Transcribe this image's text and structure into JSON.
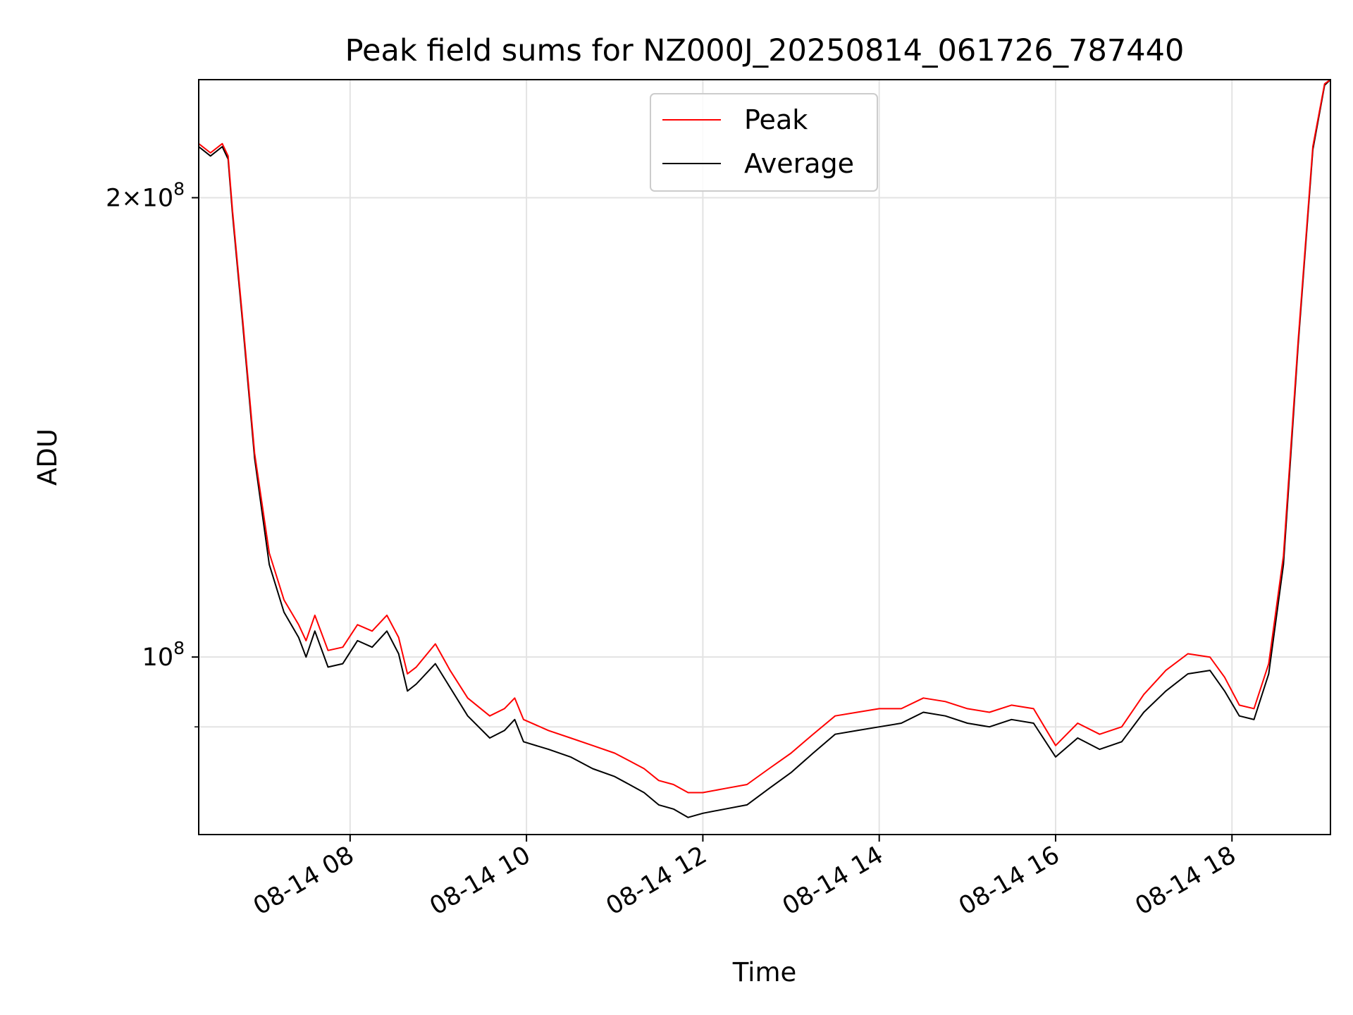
{
  "chart_data": {
    "type": "line",
    "title": "Peak field sums for NZ000J_20250814_061726_787440",
    "xlabel": "Time",
    "ylabel": "ADU",
    "y_scale": "log",
    "xlim": [
      "2025-08-14 06:17",
      "2025-08-14 19:07"
    ],
    "ylim": [
      76500000,
      239000000
    ],
    "x_ticks": [
      {
        "value": "2025-08-14 08:00",
        "label": "08-14 08"
      },
      {
        "value": "2025-08-14 10:00",
        "label": "08-14 10"
      },
      {
        "value": "2025-08-14 12:00",
        "label": "08-14 12"
      },
      {
        "value": "2025-08-14 14:00",
        "label": "08-14 14"
      },
      {
        "value": "2025-08-14 16:00",
        "label": "08-14 16"
      },
      {
        "value": "2025-08-14 18:00",
        "label": "08-14 18"
      }
    ],
    "y_ticks": [
      {
        "value": 200000000,
        "base": "2×10",
        "exp": "8"
      },
      {
        "value": 100000000,
        "base": "10",
        "exp": "8"
      }
    ],
    "y_minor_grid": [
      90000000
    ],
    "grid": true,
    "legend_position": "top-center",
    "series": [
      {
        "name": "Average",
        "color": "#000000",
        "points": [
          [
            "2025-08-14 06:17",
            216000000
          ],
          [
            "2025-08-14 06:25",
            213000000
          ],
          [
            "2025-08-14 06:33",
            216000000
          ],
          [
            "2025-08-14 06:37",
            212000000
          ],
          [
            "2025-08-14 06:40",
            195000000
          ],
          [
            "2025-08-14 06:47",
            165000000
          ],
          [
            "2025-08-14 06:55",
            135000000
          ],
          [
            "2025-08-14 07:05",
            115000000
          ],
          [
            "2025-08-14 07:15",
            107000000
          ],
          [
            "2025-08-14 07:25",
            103000000
          ],
          [
            "2025-08-14 07:30",
            100000000
          ],
          [
            "2025-08-14 07:36",
            104000000
          ],
          [
            "2025-08-14 07:45",
            98500000
          ],
          [
            "2025-08-14 07:55",
            99000000
          ],
          [
            "2025-08-14 08:05",
            102500000
          ],
          [
            "2025-08-14 08:15",
            101500000
          ],
          [
            "2025-08-14 08:25",
            104000000
          ],
          [
            "2025-08-14 08:33",
            100500000
          ],
          [
            "2025-08-14 08:39",
            95000000
          ],
          [
            "2025-08-14 08:45",
            96000000
          ],
          [
            "2025-08-14 08:58",
            99000000
          ],
          [
            "2025-08-14 09:08",
            95500000
          ],
          [
            "2025-08-14 09:20",
            91500000
          ],
          [
            "2025-08-14 09:35",
            88500000
          ],
          [
            "2025-08-14 09:45",
            89500000
          ],
          [
            "2025-08-14 09:52",
            91000000
          ],
          [
            "2025-08-14 09:58",
            88000000
          ],
          [
            "2025-08-14 10:15",
            87000000
          ],
          [
            "2025-08-14 10:30",
            86000000
          ],
          [
            "2025-08-14 10:45",
            84500000
          ],
          [
            "2025-08-14 11:00",
            83500000
          ],
          [
            "2025-08-14 11:10",
            82500000
          ],
          [
            "2025-08-14 11:20",
            81500000
          ],
          [
            "2025-08-14 11:30",
            80000000
          ],
          [
            "2025-08-14 11:40",
            79500000
          ],
          [
            "2025-08-14 11:50",
            78500000
          ],
          [
            "2025-08-14 12:00",
            79000000
          ],
          [
            "2025-08-14 12:15",
            79500000
          ],
          [
            "2025-08-14 12:30",
            80000000
          ],
          [
            "2025-08-14 12:45",
            82000000
          ],
          [
            "2025-08-14 13:00",
            84000000
          ],
          [
            "2025-08-14 13:15",
            86500000
          ],
          [
            "2025-08-14 13:30",
            89000000
          ],
          [
            "2025-08-14 13:45",
            89500000
          ],
          [
            "2025-08-14 14:00",
            90000000
          ],
          [
            "2025-08-14 14:15",
            90500000
          ],
          [
            "2025-08-14 14:30",
            92000000
          ],
          [
            "2025-08-14 14:45",
            91500000
          ],
          [
            "2025-08-14 15:00",
            90500000
          ],
          [
            "2025-08-14 15:15",
            90000000
          ],
          [
            "2025-08-14 15:30",
            91000000
          ],
          [
            "2025-08-14 15:45",
            90500000
          ],
          [
            "2025-08-14 16:00",
            86000000
          ],
          [
            "2025-08-14 16:15",
            88500000
          ],
          [
            "2025-08-14 16:30",
            87000000
          ],
          [
            "2025-08-14 16:45",
            88000000
          ],
          [
            "2025-08-14 17:00",
            92000000
          ],
          [
            "2025-08-14 17:15",
            95000000
          ],
          [
            "2025-08-14 17:30",
            97500000
          ],
          [
            "2025-08-14 17:45",
            98000000
          ],
          [
            "2025-08-14 17:55",
            95000000
          ],
          [
            "2025-08-14 18:05",
            91500000
          ],
          [
            "2025-08-14 18:15",
            91000000
          ],
          [
            "2025-08-14 18:25",
            97500000
          ],
          [
            "2025-08-14 18:35",
            115000000
          ],
          [
            "2025-08-14 18:45",
            160000000
          ],
          [
            "2025-08-14 18:55",
            215000000
          ],
          [
            "2025-08-14 19:03",
            237000000
          ],
          [
            "2025-08-14 19:07",
            239000000
          ]
        ]
      },
      {
        "name": "Peak",
        "color": "#ff0000",
        "points": [
          [
            "2025-08-14 06:17",
            217000000
          ],
          [
            "2025-08-14 06:25",
            214000000
          ],
          [
            "2025-08-14 06:33",
            217000000
          ],
          [
            "2025-08-14 06:37",
            213000000
          ],
          [
            "2025-08-14 06:40",
            196000000
          ],
          [
            "2025-08-14 06:47",
            166000000
          ],
          [
            "2025-08-14 06:55",
            136000000
          ],
          [
            "2025-08-14 07:05",
            117000000
          ],
          [
            "2025-08-14 07:15",
            109000000
          ],
          [
            "2025-08-14 07:25",
            105000000
          ],
          [
            "2025-08-14 07:30",
            102500000
          ],
          [
            "2025-08-14 07:36",
            106500000
          ],
          [
            "2025-08-14 07:45",
            101000000
          ],
          [
            "2025-08-14 07:55",
            101500000
          ],
          [
            "2025-08-14 08:05",
            105000000
          ],
          [
            "2025-08-14 08:15",
            104000000
          ],
          [
            "2025-08-14 08:25",
            106500000
          ],
          [
            "2025-08-14 08:33",
            103000000
          ],
          [
            "2025-08-14 08:39",
            97500000
          ],
          [
            "2025-08-14 08:45",
            98500000
          ],
          [
            "2025-08-14 08:58",
            102000000
          ],
          [
            "2025-08-14 09:08",
            98000000
          ],
          [
            "2025-08-14 09:20",
            94000000
          ],
          [
            "2025-08-14 09:35",
            91500000
          ],
          [
            "2025-08-14 09:45",
            92500000
          ],
          [
            "2025-08-14 09:52",
            94000000
          ],
          [
            "2025-08-14 09:58",
            91000000
          ],
          [
            "2025-08-14 10:15",
            89500000
          ],
          [
            "2025-08-14 10:30",
            88500000
          ],
          [
            "2025-08-14 10:45",
            87500000
          ],
          [
            "2025-08-14 11:00",
            86500000
          ],
          [
            "2025-08-14 11:10",
            85500000
          ],
          [
            "2025-08-14 11:20",
            84500000
          ],
          [
            "2025-08-14 11:30",
            83000000
          ],
          [
            "2025-08-14 11:40",
            82500000
          ],
          [
            "2025-08-14 11:50",
            81500000
          ],
          [
            "2025-08-14 12:00",
            81500000
          ],
          [
            "2025-08-14 12:15",
            82000000
          ],
          [
            "2025-08-14 12:30",
            82500000
          ],
          [
            "2025-08-14 12:45",
            84500000
          ],
          [
            "2025-08-14 13:00",
            86500000
          ],
          [
            "2025-08-14 13:15",
            89000000
          ],
          [
            "2025-08-14 13:30",
            91500000
          ],
          [
            "2025-08-14 13:45",
            92000000
          ],
          [
            "2025-08-14 14:00",
            92500000
          ],
          [
            "2025-08-14 14:15",
            92500000
          ],
          [
            "2025-08-14 14:30",
            94000000
          ],
          [
            "2025-08-14 14:45",
            93500000
          ],
          [
            "2025-08-14 15:00",
            92500000
          ],
          [
            "2025-08-14 15:15",
            92000000
          ],
          [
            "2025-08-14 15:30",
            93000000
          ],
          [
            "2025-08-14 15:45",
            92500000
          ],
          [
            "2025-08-14 16:00",
            87500000
          ],
          [
            "2025-08-14 16:15",
            90500000
          ],
          [
            "2025-08-14 16:30",
            89000000
          ],
          [
            "2025-08-14 16:45",
            90000000
          ],
          [
            "2025-08-14 17:00",
            94500000
          ],
          [
            "2025-08-14 17:15",
            98000000
          ],
          [
            "2025-08-14 17:30",
            100500000
          ],
          [
            "2025-08-14 17:45",
            100000000
          ],
          [
            "2025-08-14 17:55",
            97000000
          ],
          [
            "2025-08-14 18:05",
            93000000
          ],
          [
            "2025-08-14 18:15",
            92500000
          ],
          [
            "2025-08-14 18:25",
            99000000
          ],
          [
            "2025-08-14 18:35",
            116500000
          ],
          [
            "2025-08-14 18:45",
            161000000
          ],
          [
            "2025-08-14 18:55",
            216000000
          ],
          [
            "2025-08-14 19:03",
            237500000
          ],
          [
            "2025-08-14 19:07",
            239000000
          ]
        ]
      }
    ]
  }
}
